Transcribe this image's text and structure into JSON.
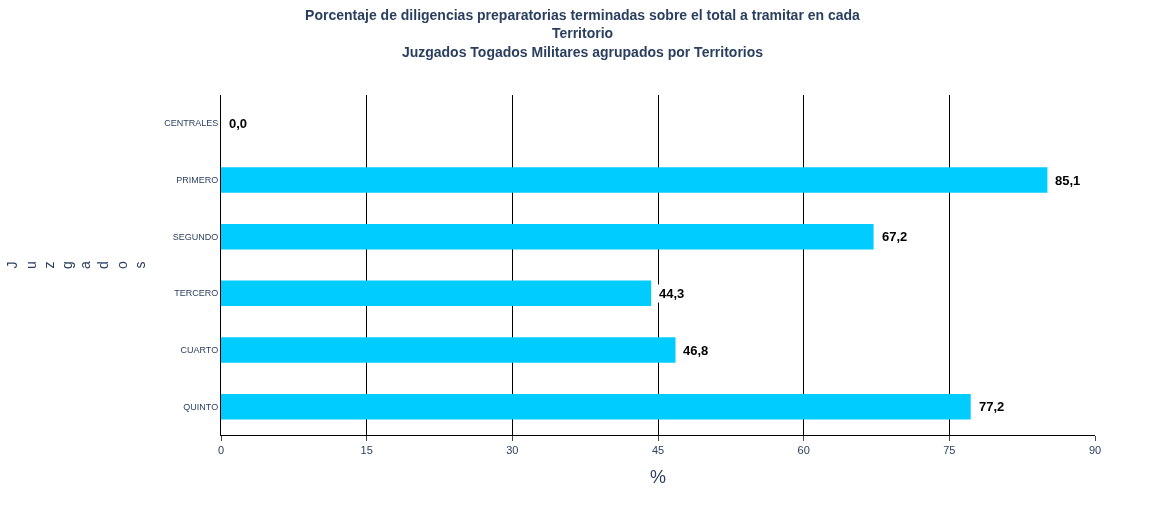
{
  "chart_data": {
    "type": "bar",
    "orientation": "horizontal",
    "title": "Porcentaje de diligencias preparatorias terminadas sobre el total a tramitar en cada Territorio",
    "subtitle": "Juzgados Togados Militares agrupados por Territorios",
    "xlabel": "%",
    "ylabel": "Juzgados",
    "categories": [
      "CENTRALES",
      "PRIMERO",
      "SEGUNDO",
      "TERCERO",
      "CUARTO",
      "QUINTO"
    ],
    "values": [
      0.0,
      85.1,
      67.2,
      44.3,
      46.8,
      77.2
    ],
    "value_labels": [
      "0,0",
      "85,1",
      "67,2",
      "44,3",
      "46,8",
      "77,2"
    ],
    "color": "#00ccff",
    "xlim": [
      0,
      90
    ],
    "xticks": [
      0,
      15,
      30,
      45,
      60,
      75,
      90
    ],
    "grid": "x",
    "legend": false
  }
}
